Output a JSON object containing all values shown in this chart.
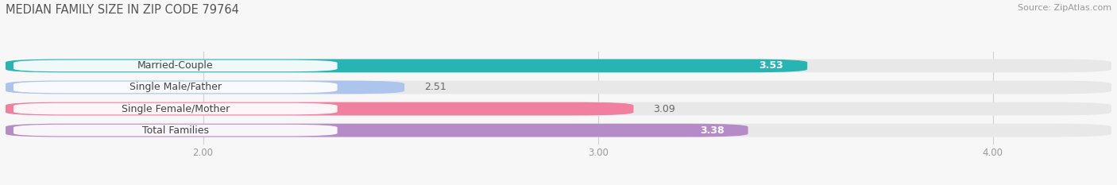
{
  "title": "MEDIAN FAMILY SIZE IN ZIP CODE 79764",
  "source": "Source: ZipAtlas.com",
  "categories": [
    "Married-Couple",
    "Single Male/Father",
    "Single Female/Mother",
    "Total Families"
  ],
  "values": [
    3.53,
    2.51,
    3.09,
    3.38
  ],
  "bar_colors": [
    "#28b4b2",
    "#adc4ec",
    "#f07fa0",
    "#b58cc8"
  ],
  "value_inside": [
    true,
    false,
    false,
    true
  ],
  "xlim_data": [
    1.5,
    4.3
  ],
  "x_axis_min": 1.5,
  "x_axis_max": 4.3,
  "xticks": [
    2.0,
    3.0,
    4.0
  ],
  "xtick_labels": [
    "2.00",
    "3.00",
    "4.00"
  ],
  "bar_height": 0.62,
  "track_color": "#e8e8e8",
  "background_color": "#f7f7f7",
  "label_bg": "white",
  "title_fontsize": 10.5,
  "label_fontsize": 9,
  "value_fontsize": 9,
  "source_fontsize": 8
}
